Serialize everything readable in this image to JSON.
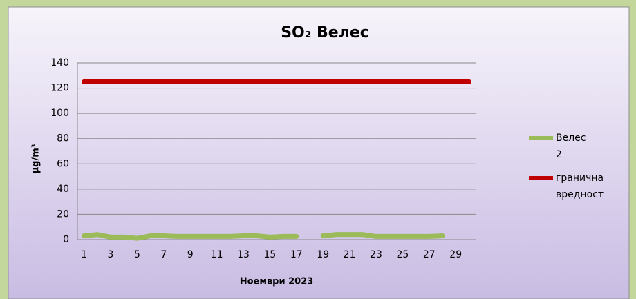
{
  "chart_data": {
    "type": "line",
    "title": "SO₂ Велес",
    "x_label": "Ноември 2023",
    "y_label": "µg/m³",
    "categories": [
      1,
      null,
      3,
      null,
      5,
      null,
      7,
      null,
      9,
      null,
      11,
      null,
      13,
      null,
      15,
      null,
      17,
      null,
      19,
      null,
      21,
      null,
      23,
      null,
      25,
      null,
      27,
      null,
      29,
      null
    ],
    "series": [
      {
        "name": "Велес 2",
        "color": "#9bbb59",
        "values": [
          3,
          4,
          2,
          2,
          1,
          3,
          3,
          2.5,
          2.5,
          2.5,
          2.5,
          2.5,
          3,
          3,
          2,
          2.5,
          2.5,
          null,
          3,
          4,
          4,
          4,
          2.5,
          2.5,
          2.5,
          2.5,
          2.5,
          3,
          null,
          null
        ]
      },
      {
        "name": "гранична вредност",
        "color": "#c00000",
        "values": [
          125,
          125,
          125,
          125,
          125,
          125,
          125,
          125,
          125,
          125,
          125,
          125,
          125,
          125,
          125,
          125,
          125,
          125,
          125,
          125,
          125,
          125,
          125,
          125,
          125,
          125,
          125,
          125,
          125,
          125
        ]
      }
    ],
    "ylim": [
      0,
      140
    ],
    "yticks": [
      0,
      20,
      40,
      60,
      80,
      100,
      120,
      140
    ],
    "grid": true,
    "legend": "right"
  }
}
